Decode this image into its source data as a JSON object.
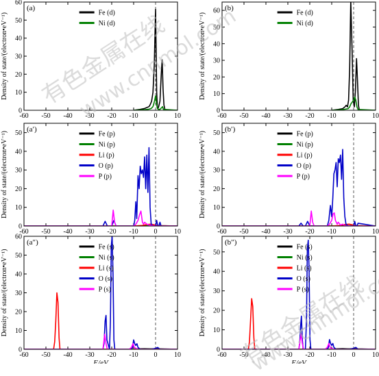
{
  "figure": {
    "x_axis_label": "E/eV",
    "y_axis_label": "Density of state/(electron•eV⁻¹)",
    "watermark_1": "有色金属在线",
    "watermark_2": "www.cnnmol.com"
  },
  "chart_data": [
    {
      "type": "line",
      "id": "a",
      "panel_label": "(a)",
      "xlim": [
        -60,
        10
      ],
      "ylim": [
        0,
        60
      ],
      "xticks": [
        -60,
        -50,
        -40,
        -30,
        -20,
        -10,
        0,
        10
      ],
      "yticks": [
        0,
        10,
        20,
        30,
        40,
        50,
        60
      ],
      "fermi_level": 0,
      "series": [
        {
          "name": "Fe (d)",
          "color": "#000000",
          "x": [
            -10,
            -7,
            -5,
            -3,
            -2.5,
            -1.8,
            -1.2,
            -0.6,
            0,
            0.5,
            0.8,
            1.1,
            1.4,
            2.0,
            2.6,
            3.0,
            3.4,
            3.8,
            4.3,
            10
          ],
          "y": [
            0,
            0.5,
            1,
            2,
            3,
            5,
            10,
            25,
            56,
            10,
            2,
            1,
            2,
            5,
            20,
            28,
            12,
            3,
            0,
            0
          ]
        },
        {
          "name": "Ni (d)",
          "color": "#008000",
          "x": [
            -10,
            -5,
            -3,
            -2,
            -1.2,
            -0.5,
            0,
            0.4,
            0.8,
            1.3,
            2.0,
            2.8,
            3.2,
            3.6,
            10
          ],
          "y": [
            0,
            0.3,
            0.6,
            1,
            2,
            5,
            8,
            4,
            1,
            0.5,
            0.5,
            1.5,
            2,
            0.5,
            0
          ]
        }
      ]
    },
    {
      "type": "line",
      "id": "b",
      "panel_label": "(b)",
      "xlim": [
        -60,
        10
      ],
      "ylim": [
        0,
        65
      ],
      "xticks": [
        -60,
        -50,
        -40,
        -30,
        -20,
        -10,
        0,
        10
      ],
      "yticks": [
        0,
        10,
        20,
        30,
        40,
        50,
        60
      ],
      "fermi_level": 0,
      "series": [
        {
          "name": "Fe (d)",
          "color": "#000000",
          "x": [
            -10,
            -7,
            -5,
            -4,
            -3.4,
            -2.8,
            -2.3,
            -1.8,
            -1.3,
            -0.7,
            -0.2,
            0.3,
            0.8,
            1.3,
            1.7,
            2.2,
            2.6,
            10
          ],
          "y": [
            0,
            0.5,
            1,
            2,
            3,
            2,
            6,
            25,
            66,
            35,
            6,
            2,
            12,
            31,
            20,
            3,
            0,
            0
          ]
        },
        {
          "name": "Ni (d)",
          "color": "#008000",
          "x": [
            -10,
            -6,
            -4,
            -2.5,
            -1.8,
            -1.2,
            -0.6,
            0,
            0.5,
            1.0,
            1.5,
            2.0,
            10
          ],
          "y": [
            0,
            0.3,
            0.6,
            1,
            2,
            4,
            5,
            6,
            8,
            6,
            2,
            0.5,
            0
          ]
        }
      ]
    },
    {
      "type": "line",
      "id": "a_prime",
      "panel_label": "(a′)",
      "xlim": [
        -60,
        10
      ],
      "ylim": [
        0,
        55
      ],
      "xticks": [
        -60,
        -50,
        -40,
        -30,
        -20,
        -10,
        0,
        10
      ],
      "yticks": [
        0,
        10,
        20,
        30,
        40,
        50
      ],
      "fermi_level": 0,
      "series": [
        {
          "name": "Fe (p)",
          "color": "#000000",
          "x": [
            -60,
            -10,
            -5,
            -2,
            0,
            2,
            10
          ],
          "y": [
            0,
            0,
            0.1,
            0.2,
            0.3,
            0.2,
            0
          ]
        },
        {
          "name": "Ni (p)",
          "color": "#008000",
          "x": [
            -60,
            -10,
            -5,
            -2,
            0,
            2,
            10
          ],
          "y": [
            0,
            0,
            0.1,
            0.1,
            0.2,
            0.1,
            0
          ]
        },
        {
          "name": "Li (p)",
          "color": "#ff0000",
          "x": [
            -60,
            -10,
            -6,
            -4,
            -2,
            0,
            1,
            10
          ],
          "y": [
            0,
            0,
            0.3,
            0.8,
            1,
            0.5,
            0.2,
            0
          ]
        },
        {
          "name": "O (p)",
          "color": "#0000c8",
          "x": [
            -60,
            -24,
            -23,
            -22,
            -20,
            -19,
            -18,
            -10,
            -9.5,
            -9,
            -8.6,
            -8,
            -7.5,
            -7,
            -6.5,
            -6,
            -5.5,
            -5,
            -4.5,
            -4,
            -3.5,
            -3,
            -2.5,
            -2,
            -1.5,
            -1,
            0,
            0.5,
            1,
            1.5,
            2,
            2.5,
            10
          ],
          "y": [
            0,
            0,
            2.5,
            0,
            0,
            3,
            0,
            0,
            3,
            13,
            4,
            27,
            20,
            32,
            28,
            30,
            26,
            37,
            20,
            38,
            18,
            42,
            10,
            1,
            0.5,
            0,
            0,
            3,
            0,
            0,
            2,
            0,
            0
          ]
        },
        {
          "name": "P (p)",
          "color": "#ff00ff",
          "x": [
            -60,
            -20,
            -19.3,
            -18.7,
            -18,
            -10,
            -9,
            -8,
            -7.3,
            -6.7,
            -6,
            -5.5,
            -5,
            -4,
            -3,
            0,
            10
          ],
          "y": [
            0,
            0,
            8.5,
            2,
            0,
            0,
            1,
            3,
            6,
            8,
            2,
            1,
            2,
            1,
            0.5,
            0,
            0
          ]
        }
      ]
    },
    {
      "type": "line",
      "id": "b_prime",
      "panel_label": "(b′)",
      "xlim": [
        -60,
        10
      ],
      "ylim": [
        0,
        55
      ],
      "xticks": [
        -60,
        -50,
        -40,
        -30,
        -20,
        -10,
        0,
        10
      ],
      "yticks": [
        0,
        10,
        20,
        30,
        40,
        50
      ],
      "fermi_level": 0,
      "series": [
        {
          "name": "Fe (p)",
          "color": "#000000",
          "x": [
            -60,
            -10,
            -5,
            -2,
            0,
            2,
            10
          ],
          "y": [
            0,
            0,
            0.1,
            0.2,
            0.3,
            0.2,
            0
          ]
        },
        {
          "name": "Ni (p)",
          "color": "#008000",
          "x": [
            -60,
            -10,
            -5,
            -2,
            0,
            2,
            10
          ],
          "y": [
            0,
            0,
            0.1,
            0.1,
            0.2,
            0.1,
            0
          ]
        },
        {
          "name": "Li (p)",
          "color": "#ff0000",
          "x": [
            -60,
            -10,
            -6,
            -4,
            -2,
            0,
            1,
            10
          ],
          "y": [
            0,
            0,
            0.3,
            0.8,
            1,
            0.5,
            0.2,
            0
          ]
        },
        {
          "name": "O (p)",
          "color": "#0000c8",
          "x": [
            -60,
            -25,
            -24,
            -23,
            -22,
            -21,
            -20,
            -12,
            -11.3,
            -10.6,
            -10,
            -9.5,
            -9,
            -8.5,
            -8,
            -7.5,
            -7,
            -6.5,
            -6,
            -5.5,
            -5,
            -4.5,
            -4,
            -3.5,
            -3,
            -2.5,
            -2,
            -1,
            0,
            0.5,
            1,
            1.5,
            2,
            10
          ],
          "y": [
            0,
            0,
            1.5,
            0,
            0,
            2.5,
            0,
            0,
            3,
            11,
            5,
            15,
            28,
            30,
            34,
            21,
            36,
            34,
            38,
            25,
            41,
            15,
            5,
            1,
            0.5,
            0.2,
            0,
            0,
            0,
            2.5,
            0,
            0,
            1.5,
            0
          ]
        },
        {
          "name": "P (p)",
          "color": "#ff00ff",
          "x": [
            -60,
            -20,
            -19.3,
            -18.7,
            -18,
            -12,
            -11,
            -10,
            -9.4,
            -8.8,
            -8.3,
            -7.5,
            -7,
            -6,
            -5,
            -4,
            0,
            10
          ],
          "y": [
            0,
            0,
            8,
            2,
            0,
            0,
            1,
            3,
            6.5,
            7,
            3,
            1,
            2,
            0.5,
            1,
            0.2,
            0,
            0
          ]
        }
      ]
    },
    {
      "type": "line",
      "id": "a_double_prime",
      "panel_label": "(a″)",
      "xlim": [
        -60,
        10
      ],
      "ylim": [
        0,
        60
      ],
      "xticks": [
        -60,
        -50,
        -40,
        -30,
        -20,
        -10,
        0,
        10
      ],
      "yticks": [
        0,
        10,
        20,
        30,
        40,
        50,
        60
      ],
      "fermi_level": 0,
      "series": [
        {
          "name": "Fe (s)",
          "color": "#000000",
          "x": [
            -60,
            -10,
            -8,
            -5,
            -2,
            0,
            2,
            10
          ],
          "y": [
            0,
            0,
            0.2,
            0.3,
            0.2,
            0.3,
            0.2,
            0
          ]
        },
        {
          "name": "Ni (s)",
          "color": "#008000",
          "x": [
            -60,
            -10,
            -5,
            0,
            10
          ],
          "y": [
            0,
            0,
            0.1,
            0.1,
            0
          ]
        },
        {
          "name": "Li (s)",
          "color": "#ff0000",
          "x": [
            -60,
            -46.5,
            -46,
            -45.5,
            -45,
            -44.5,
            -44,
            -43.6,
            10
          ],
          "y": [
            0,
            0,
            4,
            15,
            30,
            25,
            6,
            0,
            0
          ]
        },
        {
          "name": "O (s)",
          "color": "#0000c8",
          "x": [
            -60,
            -24,
            -23.5,
            -23,
            -22.6,
            -22.2,
            -21,
            -20.6,
            -20.2,
            -19.8,
            -19.4,
            -19,
            -18.6,
            -11,
            -10.5,
            -10,
            -9.5,
            -9,
            -8.5,
            -8,
            -7.5,
            -7,
            -5,
            -2,
            0,
            1,
            2,
            10
          ],
          "y": [
            0,
            0,
            3,
            15,
            18,
            5,
            0,
            15,
            55,
            60,
            40,
            5,
            0,
            0,
            1,
            5,
            3,
            2,
            3,
            1,
            0.5,
            0,
            0,
            0,
            0.5,
            1,
            0,
            0
          ]
        },
        {
          "name": "P (s)",
          "color": "#ff00ff",
          "x": [
            -60,
            -24,
            -23.2,
            -22.6,
            -22,
            -12,
            -11,
            -10.3,
            -9.7,
            -9,
            -8,
            10
          ],
          "y": [
            0,
            0,
            8,
            3,
            0,
            0,
            1,
            3,
            1,
            0.5,
            0,
            0
          ]
        }
      ]
    },
    {
      "type": "line",
      "id": "b_double_prime",
      "panel_label": "(b″)",
      "xlim": [
        -60,
        10
      ],
      "ylim": [
        0,
        58
      ],
      "xticks": [
        -60,
        -50,
        -40,
        -30,
        -20,
        -10,
        0,
        10
      ],
      "yticks": [
        0,
        10,
        20,
        30,
        40,
        50
      ],
      "fermi_level": 0,
      "series": [
        {
          "name": "Fe (s)",
          "color": "#000000",
          "x": [
            -60,
            -10,
            -8,
            -5,
            -2,
            0,
            2,
            10
          ],
          "y": [
            0,
            0,
            0.2,
            0.3,
            0.2,
            0.3,
            0.2,
            0
          ]
        },
        {
          "name": "Ni (s)",
          "color": "#008000",
          "x": [
            -60,
            -10,
            -5,
            0,
            10
          ],
          "y": [
            0,
            0,
            0.1,
            0.1,
            0
          ]
        },
        {
          "name": "Li (s)",
          "color": "#ff0000",
          "x": [
            -60,
            -48,
            -47.5,
            -47,
            -46.5,
            -46,
            -45.5,
            -45.1,
            10
          ],
          "y": [
            0,
            0,
            4,
            15,
            26,
            22,
            6,
            0,
            0
          ]
        },
        {
          "name": "O (s)",
          "color": "#0000c8",
          "x": [
            -60,
            -25,
            -24.6,
            -24.2,
            -23.8,
            -23.4,
            -23,
            -22,
            -21.5,
            -21.1,
            -20.7,
            -20.3,
            -19.9,
            -19.5,
            -12,
            -11.5,
            -11,
            -10.5,
            -10,
            -9.5,
            -9,
            -8.5,
            -8,
            -5,
            -2,
            0,
            1,
            2,
            10
          ],
          "y": [
            0,
            0,
            3,
            12,
            17,
            5,
            0,
            0,
            15,
            52,
            56,
            40,
            5,
            0,
            0,
            1,
            5,
            3,
            2,
            3,
            1,
            0.5,
            0,
            0,
            0,
            0.5,
            1,
            0,
            0
          ]
        },
        {
          "name": "P (s)",
          "color": "#ff00ff",
          "x": [
            -60,
            -25,
            -24,
            -23.4,
            -22.8,
            -13,
            -12,
            -11.3,
            -10.7,
            -10,
            -9,
            10
          ],
          "y": [
            0,
            0,
            8,
            3,
            0,
            0,
            1,
            3,
            1,
            0.5,
            0,
            0
          ]
        }
      ]
    }
  ]
}
